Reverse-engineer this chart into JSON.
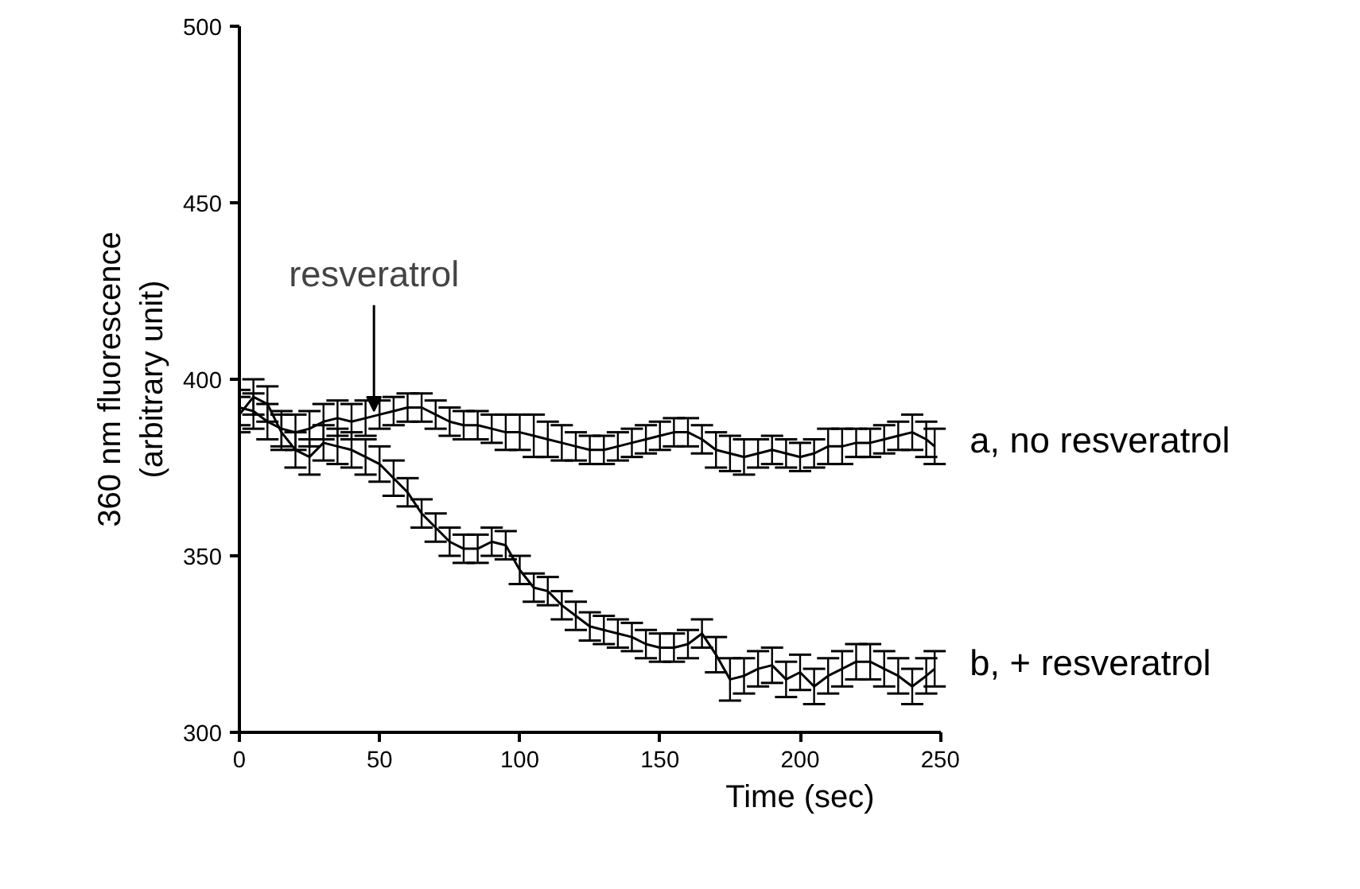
{
  "chart_data": {
    "type": "line",
    "xlabel": "Time (sec)",
    "ylabel": "360 nm fluorescence\n(arbitrary unit)",
    "x": [
      0,
      5,
      10,
      15,
      20,
      25,
      30,
      35,
      40,
      45,
      50,
      55,
      60,
      65,
      70,
      75,
      80,
      85,
      90,
      95,
      100,
      105,
      110,
      115,
      120,
      125,
      130,
      135,
      140,
      145,
      150,
      155,
      160,
      165,
      170,
      175,
      180,
      185,
      190,
      195,
      200,
      205,
      210,
      215,
      220,
      225,
      230,
      235,
      240,
      245,
      248
    ],
    "series": [
      {
        "name": "a,  no resveratrol",
        "color": "#000000",
        "values": [
          392,
          391,
          388,
          386,
          385,
          386,
          388,
          389,
          388,
          389,
          390,
          391,
          392,
          392,
          390,
          388,
          387,
          387,
          386,
          385,
          385,
          384,
          383,
          382,
          381,
          380,
          380,
          381,
          382,
          383,
          384,
          385,
          385,
          383,
          380,
          379,
          378,
          379,
          380,
          379,
          378,
          379,
          381,
          381,
          382,
          382,
          383,
          384,
          385,
          383,
          381
        ],
        "errors": [
          5,
          5,
          5,
          5,
          5,
          5,
          5,
          5,
          5,
          5,
          4,
          4,
          4,
          4,
          4,
          4,
          4,
          4,
          4,
          5,
          5,
          6,
          5,
          5,
          4,
          4,
          4,
          4,
          4,
          4,
          4,
          4,
          4,
          4,
          5,
          5,
          5,
          4,
          4,
          4,
          4,
          4,
          5,
          5,
          4,
          4,
          4,
          4,
          5,
          5,
          5
        ]
      },
      {
        "name": "b, + resveratrol",
        "color": "#000000",
        "values": [
          390,
          395,
          393,
          385,
          380,
          378,
          382,
          381,
          380,
          378,
          376,
          372,
          368,
          362,
          358,
          354,
          352,
          352,
          354,
          353,
          346,
          341,
          340,
          336,
          333,
          330,
          329,
          328,
          327,
          325,
          324,
          324,
          325,
          328,
          322,
          315,
          316,
          318,
          319,
          315,
          317,
          313,
          316,
          318,
          320,
          320,
          318,
          316,
          313,
          316,
          318
        ],
        "errors": [
          5,
          5,
          5,
          5,
          5,
          5,
          5,
          5,
          5,
          5,
          5,
          5,
          4,
          4,
          4,
          4,
          4,
          4,
          4,
          4,
          4,
          4,
          4,
          4,
          4,
          4,
          4,
          4,
          4,
          4,
          4,
          4,
          4,
          4,
          5,
          6,
          5,
          5,
          5,
          5,
          5,
          5,
          5,
          5,
          5,
          5,
          5,
          5,
          5,
          5,
          5
        ]
      }
    ],
    "xlim": [
      0,
      250
    ],
    "xticks": [
      0,
      50,
      100,
      150,
      200,
      250
    ],
    "ylim": [
      300,
      500
    ],
    "yticks": [
      300,
      350,
      400,
      450,
      500
    ],
    "annotations": [
      {
        "text": "resveratrol",
        "x": 48,
        "y": 391
      }
    ],
    "grid": false,
    "marker": "none",
    "line_style": "solid"
  }
}
